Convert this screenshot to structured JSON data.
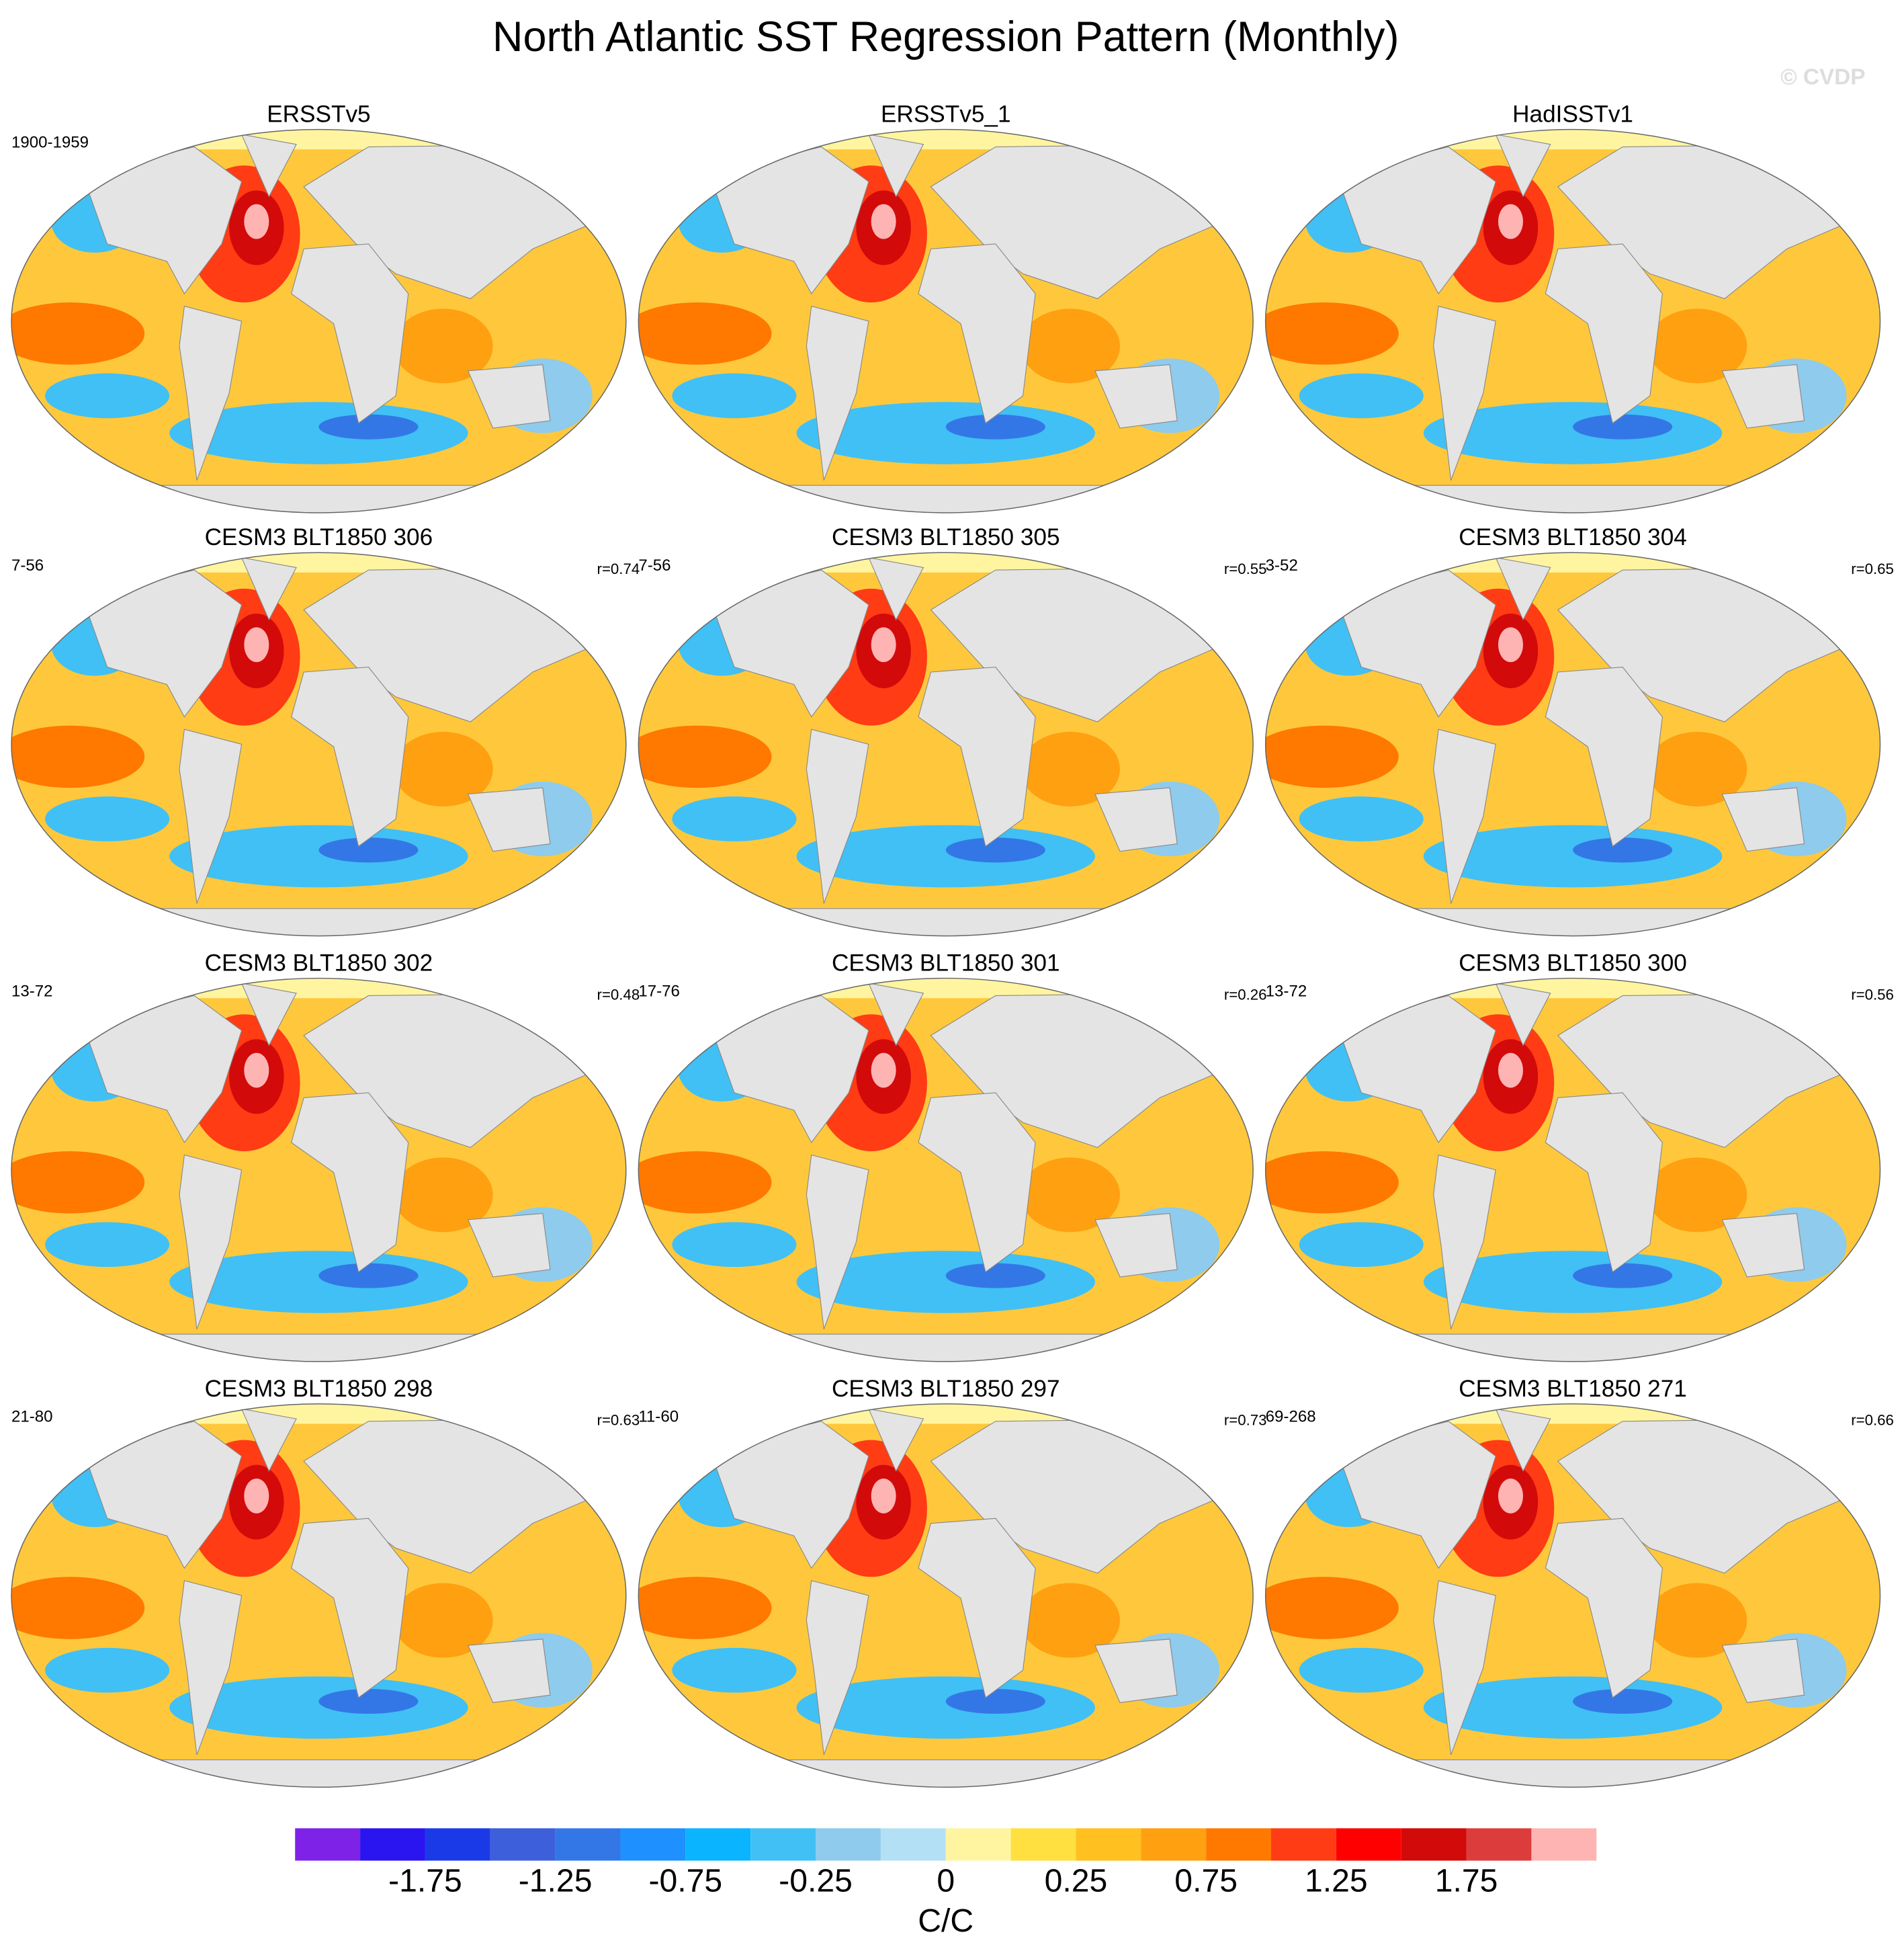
{
  "chart_data": {
    "type": "map_panels",
    "title": "North Atlantic SST Regression Pattern (Monthly)",
    "watermark": "© CVDP",
    "panels": [
      {
        "title": "ERSSTv5",
        "period": "1900-1959"
      },
      {
        "title": "ERSSTv5_1"
      },
      {
        "title": "HadISSTv1"
      },
      {
        "title": "CESM3 BLT1850 306",
        "period": "7-56",
        "r": "r=0.74"
      },
      {
        "title": "CESM3 BLT1850 305",
        "period": "7-56",
        "r": "r=0.55"
      },
      {
        "title": "CESM3 BLT1850 304",
        "period": "3-52",
        "r": "r=0.65"
      },
      {
        "title": "CESM3 BLT1850 302",
        "period": "13-72",
        "r": "r=0.48"
      },
      {
        "title": "CESM3 BLT1850 301",
        "period": "17-76",
        "r": "r=0.26"
      },
      {
        "title": "CESM3 BLT1850 300",
        "period": "13-72",
        "r": "r=0.56"
      },
      {
        "title": "CESM3 BLT1850 298",
        "period": "21-80",
        "r": "r=0.63"
      },
      {
        "title": "CESM3 BLT1850 297",
        "period": "11-60",
        "r": "r=0.73"
      },
      {
        "title": "CESM3 BLT1850 271",
        "period": "69-268",
        "r": "r=0.66"
      }
    ],
    "colorbar": {
      "label": "C/C",
      "colors": [
        "#7f22e8",
        "#2a14f0",
        "#1a3ae8",
        "#3d5fdc",
        "#3377e6",
        "#1e90ff",
        "#0ab4ff",
        "#40c0f5",
        "#8ecbed",
        "#b4e0f5",
        "#fff5a0",
        "#ffe040",
        "#ffc020",
        "#ffa010",
        "#ff7800",
        "#ff3c14",
        "#ff0000",
        "#d20a0a",
        "#dc3c3c",
        "#ffb4b4"
      ],
      "levels": [
        -2,
        -1.75,
        -1.5,
        -1.25,
        -1,
        -0.75,
        -0.5,
        -0.25,
        -0.1,
        0,
        0.1,
        0.25,
        0.5,
        0.75,
        1,
        1.25,
        1.5,
        1.75,
        2
      ],
      "ticks": [
        -1.75,
        -1.25,
        -0.75,
        -0.25,
        0,
        0.25,
        0.75,
        1.25,
        1.75
      ]
    }
  }
}
